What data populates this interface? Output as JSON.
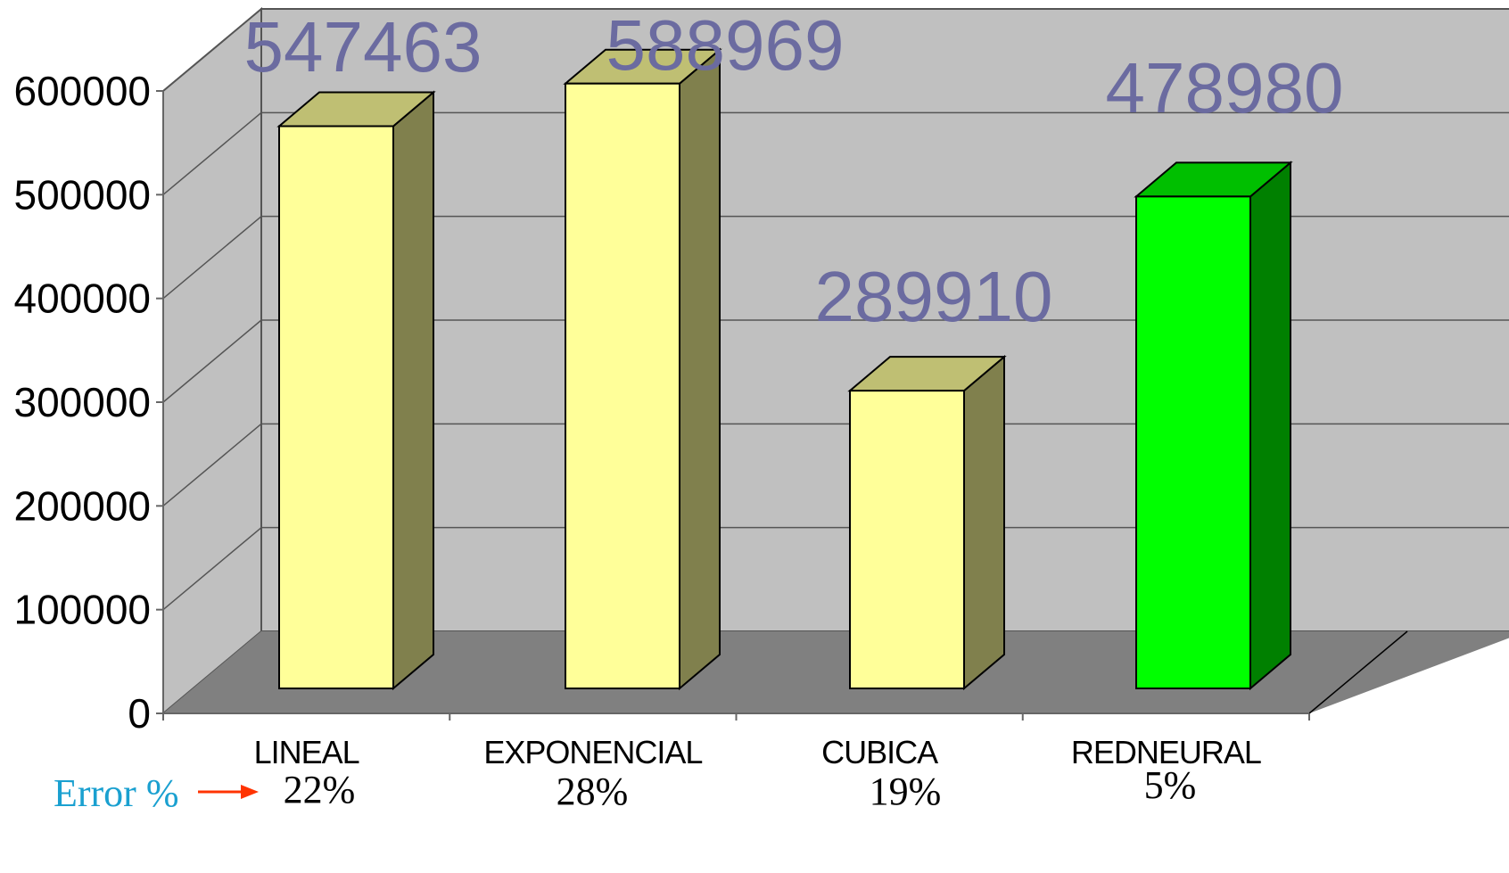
{
  "chart_data": {
    "type": "bar",
    "title": "",
    "xlabel": "",
    "ylabel": "",
    "categories": [
      "LINEAL",
      "EXPONENCIAL",
      "CUBICA",
      "REDNEURAL"
    ],
    "values": [
      547463,
      588969,
      289910,
      478980
    ],
    "data_labels": [
      "547463",
      "588969",
      "289910",
      "478980"
    ],
    "ylim": [
      0,
      600000
    ],
    "yticks": [
      0,
      100000,
      200000,
      300000,
      400000,
      500000,
      600000
    ],
    "ytick_labels": [
      "0",
      "100000",
      "200000",
      "300000",
      "400000",
      "500000",
      "600000"
    ],
    "grid": true,
    "three_d": true,
    "bar_colors": [
      "#ffff99",
      "#ffff99",
      "#ffff99",
      "#00ff00"
    ],
    "highlight_category": "REDNEURAL"
  },
  "error_row": {
    "title": "Error %",
    "values": [
      "22%",
      "28%",
      "19%",
      "5%"
    ],
    "arrow_color": "#ff3300"
  },
  "colors": {
    "back_wall": "#c0c0c0",
    "left_wall": "#c0c0c0",
    "floor": "#808080",
    "grid_line": "#555555",
    "data_label": "#6b6ba0",
    "error_title": "#1aa0d0"
  }
}
